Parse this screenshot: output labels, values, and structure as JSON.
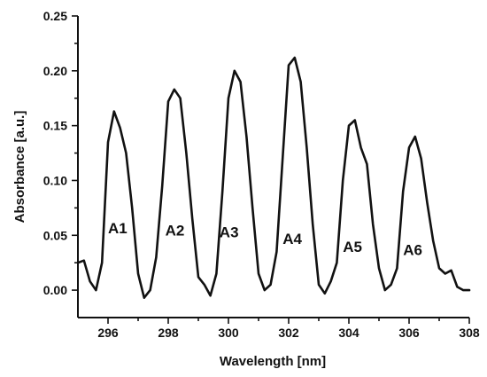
{
  "chart_data": {
    "type": "line",
    "xlabel": "Wavelength [nm]",
    "ylabel": "Absorbance [a.u.]",
    "xlim": [
      295,
      308
    ],
    "ylim": [
      -0.025,
      0.25
    ],
    "xticks": [
      296,
      298,
      300,
      302,
      304,
      306,
      308
    ],
    "yticks": [
      0.0,
      0.05,
      0.1,
      0.15,
      0.2,
      0.25
    ],
    "ytick_labels": [
      "0.00",
      "0.05",
      "0.10",
      "0.15",
      "0.20",
      "0.25"
    ],
    "grid": false,
    "series": [
      {
        "x": [
          295.0,
          295.2,
          295.4,
          295.6,
          295.8,
          296.0,
          296.2,
          296.4,
          296.6,
          296.8,
          297.0,
          297.2,
          297.4,
          297.6,
          297.8,
          298.0,
          298.2,
          298.4,
          298.6,
          298.8,
          299.0,
          299.2,
          299.4,
          299.6,
          299.8,
          300.0,
          300.2,
          300.4,
          300.6,
          300.8,
          301.0,
          301.2,
          301.4,
          301.6,
          301.8,
          302.0,
          302.2,
          302.4,
          302.6,
          302.8,
          303.0,
          303.2,
          303.4,
          303.6,
          303.8,
          304.0,
          304.2,
          304.4,
          304.6,
          304.8,
          305.0,
          305.2,
          305.4,
          305.6,
          305.8,
          306.0,
          306.2,
          306.4,
          306.6,
          306.8,
          307.0,
          307.2,
          307.4,
          307.6,
          307.8,
          308.0
        ],
        "y": [
          0.025,
          0.027,
          0.008,
          0.0,
          0.025,
          0.135,
          0.163,
          0.148,
          0.125,
          0.075,
          0.015,
          -0.007,
          0.0,
          0.03,
          0.095,
          0.172,
          0.183,
          0.175,
          0.125,
          0.065,
          0.012,
          0.005,
          -0.005,
          0.015,
          0.09,
          0.175,
          0.2,
          0.19,
          0.14,
          0.075,
          0.015,
          0.0,
          0.005,
          0.035,
          0.12,
          0.205,
          0.212,
          0.19,
          0.13,
          0.06,
          0.005,
          -0.003,
          0.008,
          0.025,
          0.1,
          0.15,
          0.155,
          0.13,
          0.115,
          0.06,
          0.02,
          0.0,
          0.005,
          0.02,
          0.09,
          0.13,
          0.14,
          0.12,
          0.08,
          0.045,
          0.02,
          0.015,
          0.018,
          0.003,
          0.0,
          0.0
        ]
      }
    ],
    "annotations": [
      {
        "text": "A1",
        "x": 296.0,
        "y": 0.052
      },
      {
        "text": "A2",
        "x": 297.9,
        "y": 0.05
      },
      {
        "text": "A3",
        "x": 299.7,
        "y": 0.048
      },
      {
        "text": "A4",
        "x": 301.8,
        "y": 0.042
      },
      {
        "text": "A5",
        "x": 303.8,
        "y": 0.035
      },
      {
        "text": "A6",
        "x": 305.8,
        "y": 0.032
      }
    ]
  }
}
